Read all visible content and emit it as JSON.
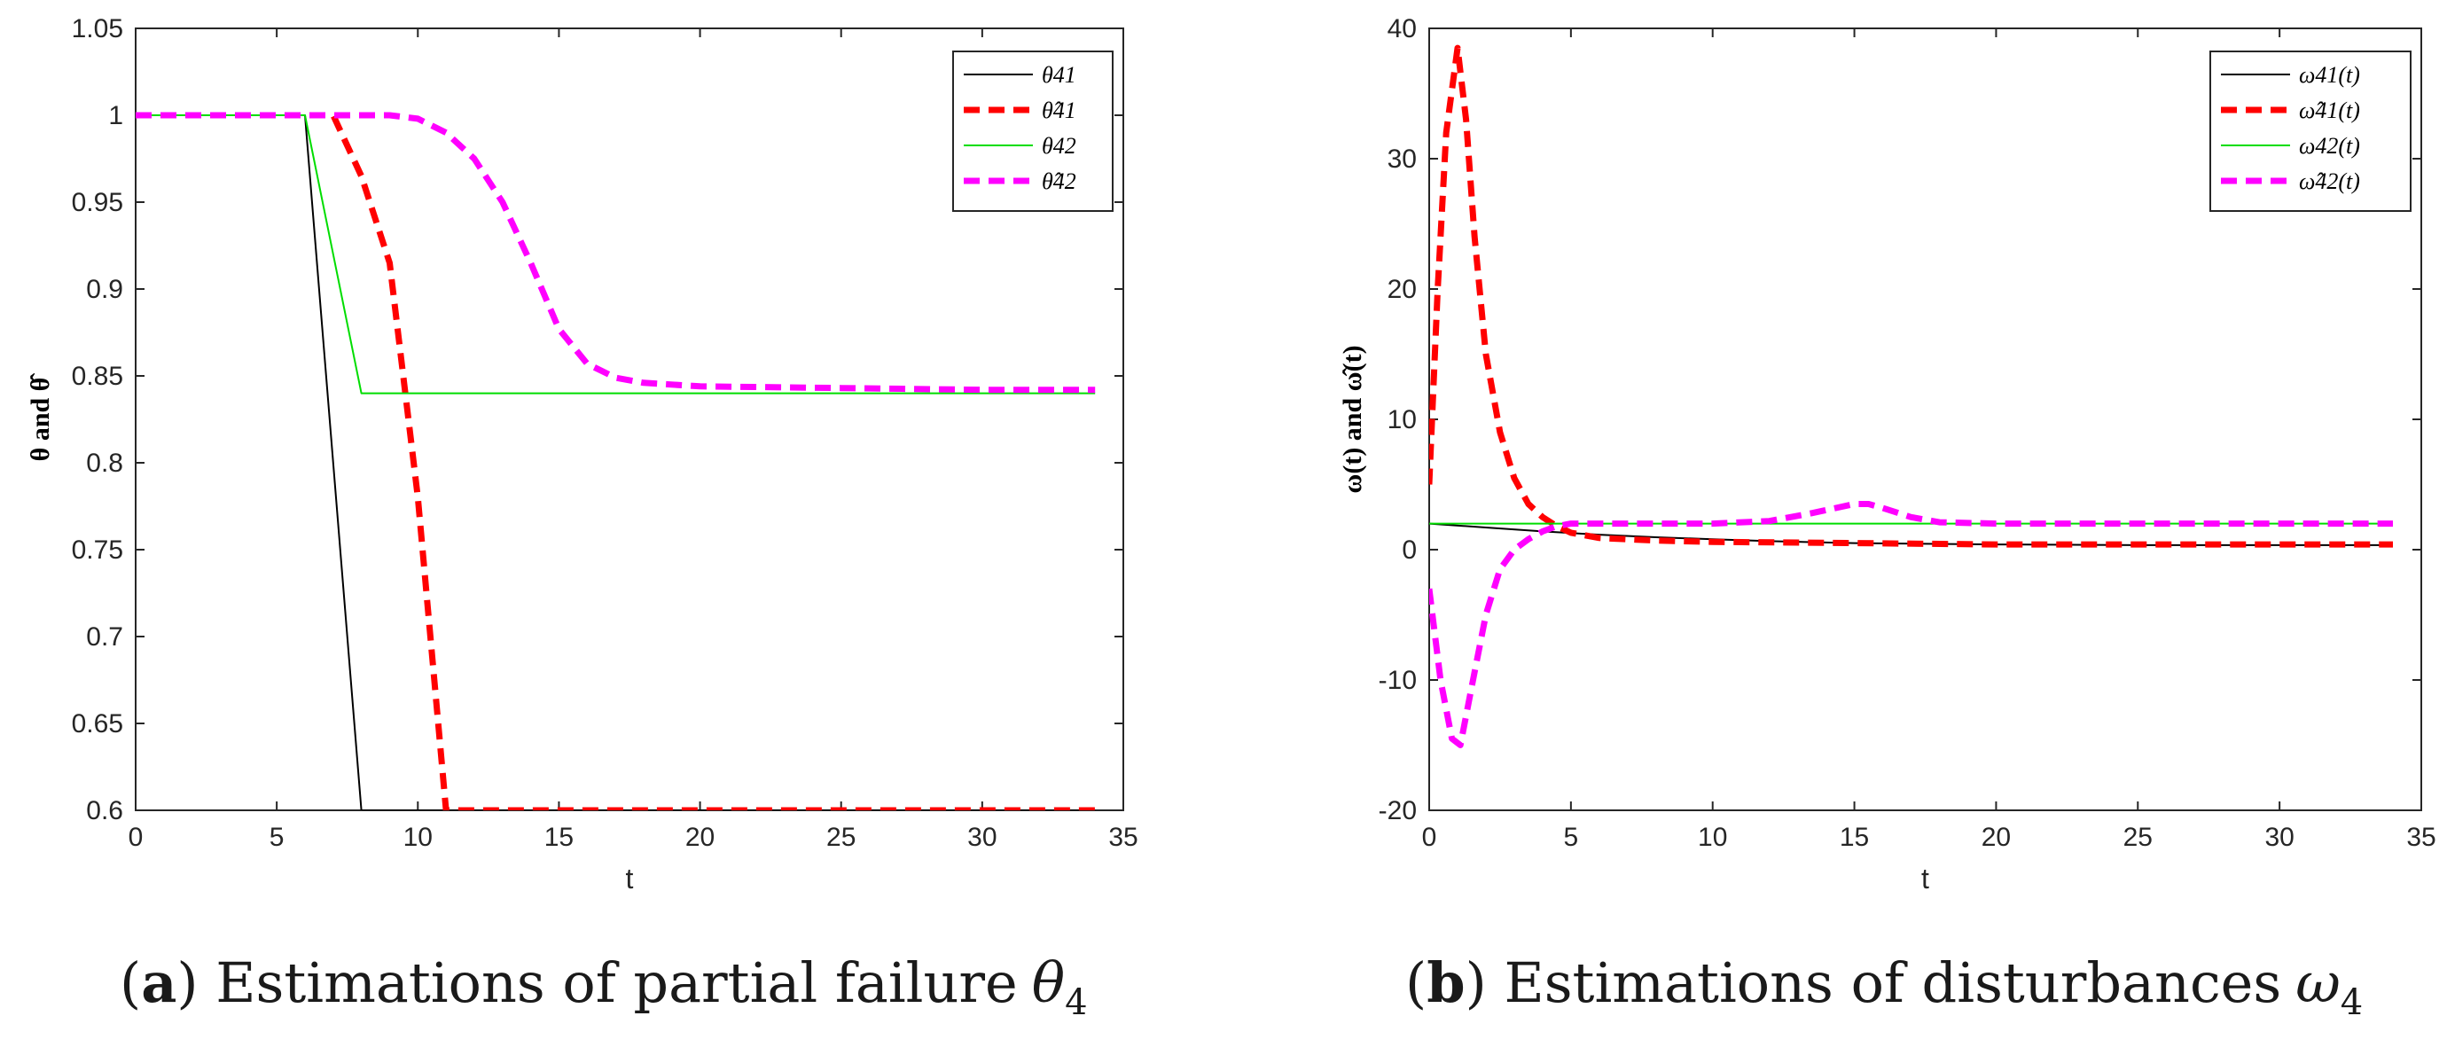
{
  "chart_data": [
    {
      "type": "line",
      "caption_letter": "a",
      "caption_text": "Estimations of partial failure",
      "caption_symbol": "θ",
      "caption_sub": "4",
      "xlabel": "t",
      "ylabel": "θ and θ̂",
      "xlim": [
        0,
        35
      ],
      "ylim": [
        0.6,
        1.05
      ],
      "xticks": [
        0,
        5,
        10,
        15,
        20,
        25,
        30,
        35
      ],
      "yticks": [
        0.6,
        0.65,
        0.7,
        0.75,
        0.8,
        0.85,
        0.9,
        0.95,
        1,
        1.05
      ],
      "ytick_labels": [
        "0.6",
        "0.65",
        "0.7",
        "0.75",
        "0.8",
        "0.85",
        "0.9",
        "0.95",
        "1",
        "1.05"
      ],
      "legend": "top-right",
      "series": [
        {
          "name": "θ41",
          "color": "#000000",
          "style": "solid",
          "x": [
            0,
            6,
            8,
            34
          ],
          "y": [
            1,
            1,
            0.6,
            0.6
          ]
        },
        {
          "name": "θ̂41",
          "color": "#ff0000",
          "style": "dashed",
          "x": [
            0,
            7,
            8,
            9,
            10,
            11,
            12,
            34
          ],
          "y": [
            1,
            1,
            0.965,
            0.915,
            0.78,
            0.6,
            0.6,
            0.6
          ]
        },
        {
          "name": "θ42",
          "color": "#00dd00",
          "style": "solid",
          "x": [
            0,
            6,
            8,
            34
          ],
          "y": [
            1,
            1,
            0.84,
            0.84
          ]
        },
        {
          "name": "θ̂42",
          "color": "#ff00ff",
          "style": "dashed",
          "x": [
            0,
            6,
            8,
            9,
            10,
            11,
            12,
            13,
            14,
            15,
            16,
            17,
            18,
            20,
            25,
            30,
            34
          ],
          "y": [
            1,
            1,
            1,
            1,
            0.998,
            0.99,
            0.975,
            0.95,
            0.915,
            0.877,
            0.857,
            0.849,
            0.846,
            0.844,
            0.843,
            0.842,
            0.842
          ]
        }
      ]
    },
    {
      "type": "line",
      "caption_letter": "b",
      "caption_text": "Estimations of disturbances",
      "caption_symbol": "ω",
      "caption_sub": "4",
      "xlabel": "t",
      "ylabel": "ω(t) and ω̂(t)",
      "xlim": [
        0,
        35
      ],
      "ylim": [
        -20,
        40
      ],
      "xticks": [
        0,
        5,
        10,
        15,
        20,
        25,
        30,
        35
      ],
      "yticks": [
        -20,
        -10,
        0,
        10,
        20,
        30,
        40
      ],
      "ytick_labels": [
        "-20",
        "-10",
        "0",
        "10",
        "20",
        "30",
        "40"
      ],
      "legend": "top-right",
      "series": [
        {
          "name": "ω41(t)",
          "color": "#000000",
          "style": "solid",
          "x": [
            0,
            2,
            4,
            6,
            8,
            10,
            12,
            15,
            20,
            25,
            30,
            34
          ],
          "y": [
            2,
            1.7,
            1.4,
            1.15,
            0.95,
            0.8,
            0.65,
            0.5,
            0.4,
            0.35,
            0.35,
            0.35
          ]
        },
        {
          "name": "ω̂41(t)",
          "color": "#ff0000",
          "style": "dashed",
          "x": [
            0,
            0.3,
            0.6,
            1,
            1.3,
            1.6,
            2,
            2.5,
            3,
            3.5,
            4,
            4.5,
            5,
            6,
            8,
            10,
            15,
            20,
            25,
            30,
            34
          ],
          "y": [
            5,
            20,
            32,
            38.5,
            33,
            24,
            15,
            9,
            5.5,
            3.5,
            2.5,
            1.8,
            1.3,
            0.9,
            0.7,
            0.6,
            0.5,
            0.4,
            0.4,
            0.4,
            0.4
          ]
        },
        {
          "name": "ω42(t)",
          "color": "#00dd00",
          "style": "solid",
          "x": [
            0,
            34
          ],
          "y": [
            2,
            2
          ]
        },
        {
          "name": "ω̂42(t)",
          "color": "#ff00ff",
          "style": "dashed",
          "x": [
            0,
            0.4,
            0.8,
            1.1,
            1.5,
            2,
            2.5,
            3,
            3.5,
            4,
            4.5,
            5,
            6,
            8,
            10,
            12,
            13.5,
            15,
            15.5,
            16,
            17,
            18,
            20,
            25,
            30,
            34
          ],
          "y": [
            -3,
            -10,
            -14.5,
            -15,
            -10.5,
            -5,
            -1.5,
            0,
            0.8,
            1.4,
            1.8,
            2,
            2,
            2,
            2,
            2.2,
            2.8,
            3.5,
            3.5,
            3.2,
            2.5,
            2.1,
            2,
            2,
            2,
            2
          ]
        }
      ]
    }
  ]
}
